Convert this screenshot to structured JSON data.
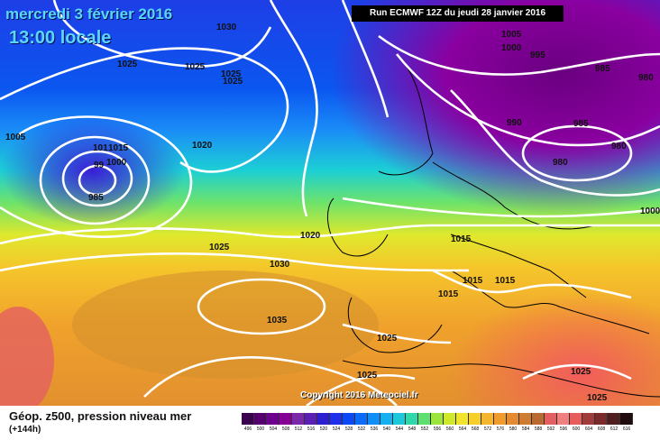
{
  "header": {
    "date": "mercredi 3 février 2016",
    "time": "13:00 locale",
    "run_info": "Run ECMWF 12Z du jeudi 28 janvier 2016"
  },
  "copyright": "Copyright 2016 Meteociel.fr",
  "isobar_labels": [
    "1030",
    "1025",
    "1025",
    "1025",
    "1025",
    "1005",
    "1000",
    "995",
    "985",
    "980",
    "990",
    "985",
    "980",
    "980",
    "1005",
    "101",
    "1015",
    "1000",
    "99",
    "985",
    "1020",
    "1000",
    "1020",
    "1015",
    "1025",
    "1030",
    "1015",
    "1015",
    "1015",
    "1035",
    "1025",
    "1025",
    "1025",
    "1025"
  ],
  "legend": {
    "title": "Géop. z500, pression niveau mer",
    "subtitle": "(+144h)",
    "scale_labels": [
      "496",
      "500",
      "504",
      "508",
      "512",
      "516",
      "520",
      "524",
      "528",
      "532",
      "536",
      "540",
      "544",
      "548",
      "552",
      "556",
      "560",
      "564",
      "568",
      "572",
      "576",
      "580",
      "584",
      "588",
      "592",
      "596",
      "600",
      "604",
      "608",
      "612",
      "616"
    ],
    "scale_colors": [
      "#3b0050",
      "#560070",
      "#6e0090",
      "#860098",
      "#7a2aa8",
      "#5a1fb3",
      "#2c1ed1",
      "#1d2fe8",
      "#0a49f4",
      "#0a6cf8",
      "#0f8ef7",
      "#16b0f0",
      "#1cc8d9",
      "#2fd7a9",
      "#5fdf6f",
      "#9be53c",
      "#cfe82a",
      "#f2e42a",
      "#f7cf2a",
      "#f5b52c",
      "#f09c2c",
      "#e48a30",
      "#cf7b32",
      "#b96a31",
      "#e46060",
      "#f08080",
      "#e85c5c",
      "#a03c3c",
      "#7a2c2c",
      "#502020",
      "#200c0c"
    ]
  }
}
